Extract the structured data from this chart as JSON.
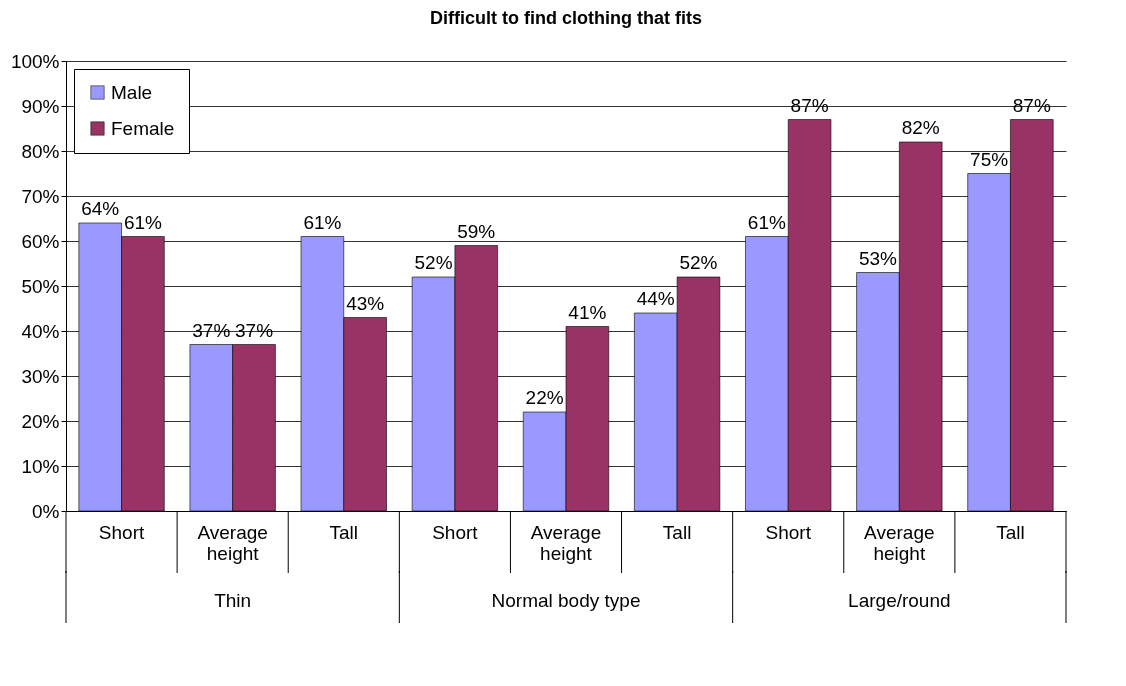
{
  "chart_data": {
    "type": "bar",
    "title": "Difficult to find clothing that fits",
    "categories": [
      "Short",
      "Average height",
      "Tall",
      "Short",
      "Average height",
      "Tall",
      "Short",
      "Average height",
      "Tall"
    ],
    "series": [
      {
        "name": "Male",
        "color": "#9999ff",
        "values": [
          64,
          37,
          61,
          52,
          22,
          44,
          61,
          53,
          75
        ],
        "value_labels": [
          "64%",
          "37%",
          "61%",
          "52%",
          "22%",
          "44%",
          "61%",
          "53%",
          "75%"
        ]
      },
      {
        "name": "Female",
        "color": "#993366",
        "values": [
          61,
          37,
          43,
          59,
          41,
          52,
          87,
          82,
          87
        ],
        "value_labels": [
          "61%",
          "37%",
          "43%",
          "59%",
          "41%",
          "52%",
          "87%",
          "82%",
          "87%"
        ]
      }
    ],
    "annotations": [
      "Thin",
      "Normal body type",
      "Large/round"
    ],
    "ylim": [
      0,
      100
    ],
    "yticks": [
      {
        "value": 0,
        "label": "0%"
      },
      {
        "value": 10,
        "label": "10%"
      },
      {
        "value": 20,
        "label": "20%"
      },
      {
        "value": 30,
        "label": "30%"
      },
      {
        "value": 40,
        "label": "40%"
      },
      {
        "value": 50,
        "label": "50%"
      },
      {
        "value": 60,
        "label": "60%"
      },
      {
        "value": 70,
        "label": "70%"
      },
      {
        "value": 80,
        "label": "80%"
      },
      {
        "value": 90,
        "label": "90%"
      },
      {
        "value": 100,
        "label": "100%"
      }
    ],
    "grid": "y",
    "legend": "top left"
  }
}
